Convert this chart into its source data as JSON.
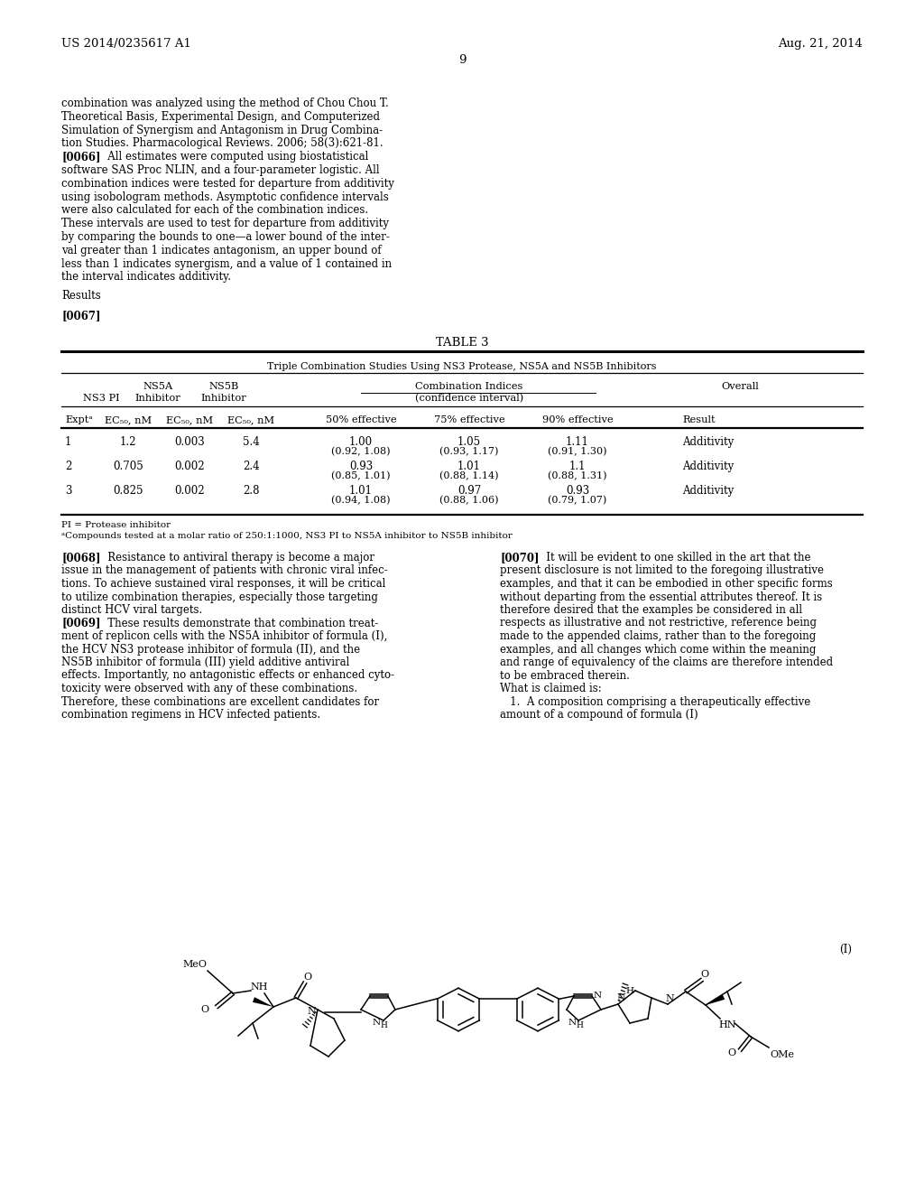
{
  "background_color": "#ffffff",
  "page_number": "9",
  "header_left": "US 2014/0235617 A1",
  "header_right": "Aug. 21, 2014",
  "font_family": "DejaVu Serif",
  "body_fontsize": 8.5,
  "header_fontsize": 9.5,
  "table_title": "TABLE 3",
  "table_subtitle": "Triple Combination Studies Using NS3 Protease, NS5A and NS5B Inhibitors",
  "footnote1": "PI = Protease inhibitor",
  "footnote2": "aCompounds tested at a molar ratio of 250:1:1000, NS3 PI to NS5A inhibitor to NS5B inhibitor",
  "formula_label": "(I)",
  "left_col_lines": [
    [
      "normal",
      "combination was analyzed using the method of Chou Chou T."
    ],
    [
      "normal",
      "Theoretical Basis, Experimental Design, and Computerized"
    ],
    [
      "normal",
      "Simulation of Synergism and Antagonism in Drug Combina-"
    ],
    [
      "normal",
      "tion Studies. Pharmacological Reviews. 2006; 58(3):621-81."
    ],
    [
      "bold",
      "[0066]"
    ],
    [
      "normal",
      "software SAS Proc NLIN, and a four-parameter logistic. All"
    ],
    [
      "normal",
      "combination indices were tested for departure from additivity"
    ],
    [
      "normal",
      "using isobologram methods. Asymptotic confidence intervals"
    ],
    [
      "normal",
      "were also calculated for each of the combination indices."
    ],
    [
      "normal",
      "These intervals are used to test for departure from additivity"
    ],
    [
      "normal",
      "by comparing the bounds to one—a lower bound of the inter-"
    ],
    [
      "normal",
      "val greater than 1 indicates antagonism, an upper bound of"
    ],
    [
      "normal",
      "less than 1 indicates synergism, and a value of 1 contained in"
    ],
    [
      "normal",
      "the interval indicates additivity."
    ]
  ],
  "col1_0066_rest": "   All estimates were computed using biostatistical",
  "results_text": "Results",
  "para_0067": "[0067]",
  "left_two_col": [
    [
      "bold",
      "[0068]",
      "   Resistance to antiviral therapy is become a major"
    ],
    [
      "normal",
      "",
      "issue in the management of patients with chronic viral infec-"
    ],
    [
      "normal",
      "",
      "tions. To achieve sustained viral responses, it will be critical"
    ],
    [
      "normal",
      "",
      "to utilize combination therapies, especially those targeting"
    ],
    [
      "normal",
      "",
      "distinct HCV viral targets."
    ],
    [
      "bold",
      "[0069]",
      "   These results demonstrate that combination treat-"
    ],
    [
      "normal",
      "",
      "ment of replicon cells with the NS5A inhibitor of formula (I),"
    ],
    [
      "normal",
      "",
      "the HCV NS3 protease inhibitor of formula (II), and the"
    ],
    [
      "normal",
      "",
      "NS5B inhibitor of formula (III) yield additive antiviral"
    ],
    [
      "normal",
      "",
      "effects. Importantly, no antagonistic effects or enhanced cyto-"
    ],
    [
      "normal",
      "",
      "toxicity were observed with any of these combinations."
    ],
    [
      "normal",
      "",
      "Therefore, these combinations are excellent candidates for"
    ],
    [
      "normal",
      "",
      "combination regimens in HCV infected patients."
    ]
  ],
  "right_two_col": [
    [
      "bold",
      "[0070]",
      "   It will be evident to one skilled in the art that the"
    ],
    [
      "normal",
      "",
      "present disclosure is not limited to the foregoing illustrative"
    ],
    [
      "normal",
      "",
      "examples, and that it can be embodied in other specific forms"
    ],
    [
      "normal",
      "",
      "without departing from the essential attributes thereof. It is"
    ],
    [
      "normal",
      "",
      "therefore desired that the examples be considered in all"
    ],
    [
      "normal",
      "",
      "respects as illustrative and not restrictive, reference being"
    ],
    [
      "normal",
      "",
      "made to the appended claims, rather than to the foregoing"
    ],
    [
      "normal",
      "",
      "examples, and all changes which come within the meaning"
    ],
    [
      "normal",
      "",
      "and range of equivalency of the claims are therefore intended"
    ],
    [
      "normal",
      "",
      "to be embraced therein."
    ],
    [
      "normal",
      "",
      "What is claimed is:"
    ],
    [
      "normal",
      "",
      "   1.  A composition comprising a therapeutically effective"
    ],
    [
      "normal",
      "",
      "amount of a compound of formula (I)"
    ]
  ]
}
